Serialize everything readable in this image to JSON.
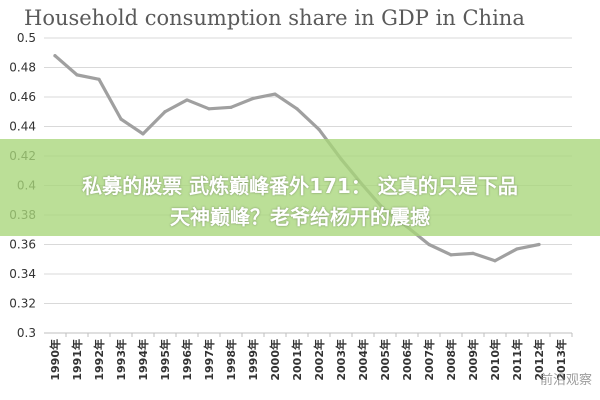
{
  "chart_data": {
    "type": "line",
    "title": "Household consumption share in GDP in China",
    "categories": [
      "1990年",
      "1991年",
      "1992年",
      "1993年",
      "1994年",
      "1995年",
      "1996年",
      "1997年",
      "1998年",
      "1999年",
      "2000年",
      "2001年",
      "2002年",
      "2003年",
      "2004年",
      "2005年",
      "2006年",
      "2007年",
      "2008年",
      "2009年",
      "2010年",
      "2011年",
      "2012年",
      "2013年"
    ],
    "series": [
      {
        "values": [
          0.488,
          0.475,
          0.472,
          0.445,
          0.435,
          0.45,
          0.458,
          0.452,
          0.453,
          0.459,
          0.462,
          0.452,
          0.438,
          0.418,
          0.4,
          0.383,
          0.372,
          0.36,
          0.353,
          0.354,
          0.349,
          0.357,
          0.36,
          null
        ]
      }
    ],
    "yticks": [
      "0.5",
      "0.48",
      "0.46",
      "0.44",
      "0.42",
      "0.4",
      "0.38",
      "0.36",
      "0.34",
      "0.32",
      "0.3"
    ],
    "ylim": [
      0.3,
      0.5
    ],
    "grid": true,
    "line_color": "#a0a0a0"
  },
  "overlay": {
    "line1": "私募的股票 武炼巅峰番外171： 这真的只是下品",
    "line2": "天神巅峰？老爷给杨开的震撼"
  },
  "watermark": "前沿观察"
}
